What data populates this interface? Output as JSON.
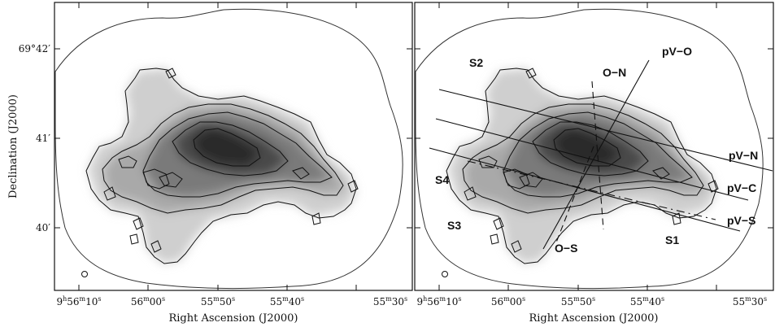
{
  "figure": {
    "y_axis_title": "Declination (J2000)",
    "x_axis_title": "Right Ascension (J2000)",
    "y_ticks": [
      {
        "text": "69°42′",
        "value": "69°42′"
      },
      {
        "text": "41′",
        "value": "41′"
      },
      {
        "text": "40′",
        "value": "40′"
      }
    ],
    "x_ticks": [
      {
        "h": "9",
        "m": "56",
        "s": "10",
        "main": "9",
        "sup_h": "h",
        "mid": "56",
        "sup_m": "m",
        "end": "10",
        "sup_s": "s"
      },
      {
        "main": "56",
        "sup_m": "m",
        "mid": "00",
        "sup_s": "s"
      },
      {
        "main": "55",
        "sup_m": "m",
        "mid": "50",
        "sup_s": "s"
      },
      {
        "main": "55",
        "sup_m": "m",
        "mid": "40",
        "sup_s": "s"
      },
      {
        "main": "55",
        "sup_m": "m",
        "mid": "30",
        "sup_s": "s"
      }
    ],
    "left_panel": {},
    "right_panel": {
      "cut_labels": [
        "pV−O",
        "O−N",
        "pV−N",
        "pV−C",
        "pV−S",
        "O−S"
      ],
      "region_labels": [
        "S1",
        "S2",
        "S3",
        "S4"
      ]
    },
    "colors": {
      "ink": "#111111",
      "background": "#ffffff"
    }
  }
}
